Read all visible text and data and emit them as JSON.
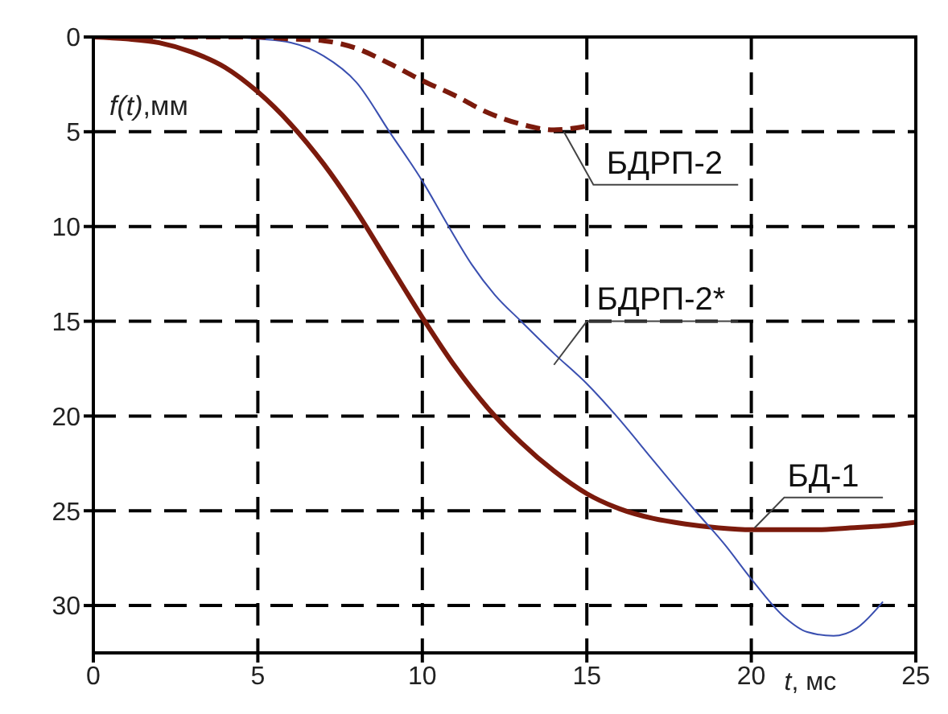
{
  "chart_data": {
    "type": "line",
    "xlabel": "t, мс",
    "ylabel": "f(t),мм",
    "xlim": [
      0,
      25
    ],
    "xticks": [
      0,
      5,
      10,
      15,
      20,
      25
    ],
    "ylim": [
      32.5,
      0
    ],
    "yticks": [
      0,
      5,
      10,
      15,
      20,
      25,
      30
    ],
    "grid": true,
    "marker": "none",
    "series": [
      {
        "name": "БД-1",
        "color": "#7b1a0c",
        "line_style": "solid",
        "x": [
          0,
          1,
          2,
          3,
          4,
          5,
          6,
          7,
          8,
          9,
          10,
          11,
          12,
          13,
          14,
          15,
          16,
          17,
          18,
          19,
          20,
          21,
          22,
          23,
          24,
          25
        ],
        "values": [
          0,
          0.1,
          0.3,
          0.8,
          1.6,
          2.9,
          4.6,
          6.7,
          9.2,
          12.0,
          14.8,
          17.4,
          19.6,
          21.4,
          22.9,
          24.1,
          24.9,
          25.4,
          25.7,
          25.9,
          26.0,
          26.0,
          26.0,
          25.9,
          25.8,
          25.6
        ]
      },
      {
        "name": "БДРП-2*",
        "color": "#3a4fb0",
        "line_style": "solid",
        "x": [
          0,
          4,
          5,
          6,
          7,
          8,
          9,
          10,
          10.8,
          11.5,
          12.2,
          13,
          14,
          15,
          15.9,
          17,
          18.3,
          19.2,
          20,
          21,
          21.7,
          22.5,
          23.2,
          24
        ],
        "values": [
          0,
          0,
          0.1,
          0.3,
          1.0,
          2.4,
          5.0,
          7.6,
          10,
          12,
          13.6,
          15,
          16.7,
          18.3,
          20,
          22.3,
          25,
          26.8,
          28.6,
          30.6,
          31.4,
          31.6,
          31.2,
          29.8
        ]
      },
      {
        "name": "БДРП-2",
        "color": "#7b1a0c",
        "line_style": "dashed",
        "x": [
          0,
          5,
          6,
          7,
          8,
          9,
          10,
          11,
          12,
          13,
          14,
          15
        ],
        "values": [
          0,
          0,
          0.1,
          0.2,
          0.6,
          1.4,
          2.3,
          3.1,
          4.0,
          4.6,
          4.9,
          4.7
        ]
      }
    ]
  }
}
